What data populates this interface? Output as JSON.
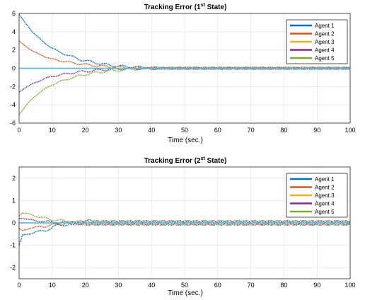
{
  "colors": {
    "agent1": "#0072BD",
    "agent2": "#D95319",
    "agent3": "#EDB120",
    "agent4": "#7E2F8E",
    "agent5": "#77AC30",
    "overlay": "#4DBEEE",
    "grid": "#e6e6e6",
    "axis": "#262626"
  },
  "chart_data": [
    {
      "type": "line",
      "title": "Tracking Error (1",
      "title_sup": "st",
      "title_tail": " State)",
      "xlabel": "Time (sec.)",
      "ylabel": "",
      "xlim": [
        0,
        100
      ],
      "ylim": [
        -6,
        6
      ],
      "xticks": [
        "0",
        "10",
        "20",
        "30",
        "40",
        "50",
        "60",
        "70",
        "80",
        "90",
        "100"
      ],
      "yticks": [
        "6",
        "4",
        "2",
        "0",
        "-2",
        "-4",
        "-6"
      ],
      "grid": true,
      "legend_position": "top-right",
      "series": [
        {
          "name": "Agent 1",
          "x": [
            0,
            2,
            4,
            6,
            8,
            10,
            12,
            15,
            18,
            21,
            24,
            27,
            30,
            33,
            36,
            40,
            45,
            50,
            60,
            70,
            80,
            90,
            100
          ],
          "values": [
            5.9,
            4.9,
            4.0,
            3.3,
            2.7,
            2.2,
            1.8,
            1.4,
            1.0,
            0.75,
            0.55,
            0.35,
            0.25,
            0.15,
            0.1,
            0.05,
            0.0,
            0.0,
            0.0,
            0.0,
            0.0,
            0.0,
            0.0
          ]
        },
        {
          "name": "Agent 2",
          "x": [
            0,
            2,
            4,
            6,
            8,
            10,
            12,
            15,
            18,
            21,
            24,
            27,
            30,
            33,
            36,
            40,
            45,
            50,
            60,
            70,
            80,
            90,
            100
          ],
          "values": [
            3.0,
            2.4,
            1.9,
            1.55,
            1.25,
            1.0,
            0.85,
            0.65,
            0.5,
            0.35,
            0.25,
            0.18,
            0.12,
            0.08,
            0.05,
            0.03,
            0.0,
            0.0,
            0.0,
            0.0,
            0.0,
            0.0,
            0.0
          ]
        },
        {
          "name": "Agent 3",
          "x": [
            0,
            10,
            20,
            30,
            40,
            50,
            60,
            70,
            80,
            90,
            100
          ],
          "values": [
            0,
            0,
            0,
            0,
            0,
            0,
            0,
            0,
            0,
            0,
            0
          ]
        },
        {
          "name": "Agent 4",
          "x": [
            0,
            2,
            4,
            6,
            8,
            10,
            12,
            15,
            18,
            21,
            24,
            27,
            30,
            33,
            36,
            40,
            45,
            50,
            60,
            70,
            80,
            90,
            100
          ],
          "values": [
            -2.6,
            -2.1,
            -1.7,
            -1.4,
            -1.1,
            -0.9,
            -0.75,
            -0.55,
            -0.4,
            -0.3,
            -0.2,
            -0.12,
            -0.08,
            -0.05,
            -0.03,
            -0.02,
            0.0,
            0.0,
            0.0,
            0.0,
            0.0,
            0.0,
            0.0
          ]
        },
        {
          "name": "Agent 5",
          "x": [
            0,
            2,
            4,
            6,
            8,
            10,
            12,
            15,
            18,
            21,
            24,
            27,
            30,
            33,
            36,
            40,
            45,
            50,
            60,
            70,
            80,
            90,
            100
          ],
          "values": [
            -5.1,
            -4.1,
            -3.3,
            -2.7,
            -2.2,
            -1.8,
            -1.5,
            -1.15,
            -0.85,
            -0.6,
            -0.45,
            -0.3,
            -0.2,
            -0.12,
            -0.08,
            -0.04,
            0.0,
            0.0,
            0.0,
            0.0,
            0.0,
            0.0,
            0.0
          ]
        }
      ],
      "residual_oscillation": {
        "amplitude": 0.12,
        "period": 5
      }
    },
    {
      "type": "line",
      "title": "Tracking Error (2",
      "title_sup": "st",
      "title_tail": " State)",
      "xlabel": "Time (sec.)",
      "ylabel": "",
      "xlim": [
        0,
        100
      ],
      "ylim": [
        -2.5,
        2.5
      ],
      "xticks": [
        "0",
        "10",
        "20",
        "30",
        "40",
        "50",
        "60",
        "70",
        "80",
        "90",
        "100"
      ],
      "yticks": [
        "2",
        "1",
        "0",
        "-1",
        "-2"
      ],
      "grid": true,
      "legend_position": "top-right",
      "series": [
        {
          "name": "Agent 1",
          "x": [
            0,
            1,
            3,
            5,
            8,
            10,
            12,
            15,
            18,
            21,
            24,
            27,
            30,
            35,
            40,
            50,
            60,
            70,
            80,
            90,
            100
          ],
          "values": [
            -1.0,
            -0.55,
            -0.5,
            -0.4,
            -0.35,
            -0.2,
            -0.1,
            -0.05,
            0.0,
            0.05,
            0.0,
            0.0,
            0.0,
            0.0,
            0.0,
            0.0,
            0.0,
            0.0,
            0.0,
            0.0,
            0.0
          ]
        },
        {
          "name": "Agent 2",
          "x": [
            0,
            1,
            3,
            5,
            8,
            10,
            12,
            15,
            18,
            21,
            24,
            27,
            30,
            35,
            40,
            50,
            60,
            70,
            80,
            90,
            100
          ],
          "values": [
            -0.25,
            -0.35,
            -0.25,
            -0.2,
            -0.15,
            -0.1,
            -0.05,
            0.0,
            0.0,
            0.0,
            0.0,
            0.0,
            0.0,
            0.0,
            0.0,
            0.0,
            0.0,
            0.0,
            0.0,
            0.0,
            0.0
          ]
        },
        {
          "name": "Agent 3",
          "x": [
            0,
            10,
            20,
            30,
            40,
            50,
            60,
            70,
            80,
            90,
            100
          ],
          "values": [
            0,
            0,
            0,
            0,
            0,
            0,
            0,
            0,
            0,
            0,
            0
          ]
        },
        {
          "name": "Agent 4",
          "x": [
            0,
            1,
            3,
            5,
            8,
            10,
            12,
            15,
            18,
            21,
            24,
            27,
            30,
            35,
            40,
            50,
            60,
            70,
            80,
            90,
            100
          ],
          "values": [
            0.2,
            0.2,
            0.15,
            0.1,
            0.05,
            0.05,
            0.0,
            0.0,
            0.0,
            0.0,
            0.0,
            0.0,
            0.0,
            0.0,
            0.0,
            0.0,
            0.0,
            0.0,
            0.0,
            0.0,
            0.0
          ]
        },
        {
          "name": "Agent 5",
          "x": [
            0,
            1,
            3,
            5,
            8,
            10,
            12,
            15,
            18,
            21,
            24,
            27,
            30,
            35,
            40,
            50,
            60,
            70,
            80,
            90,
            100
          ],
          "values": [
            0.3,
            0.45,
            0.4,
            0.3,
            0.2,
            0.15,
            0.1,
            0.05,
            0.0,
            0.0,
            0.0,
            0.0,
            0.0,
            0.0,
            0.0,
            0.0,
            0.0,
            0.0,
            0.0,
            0.0,
            0.0
          ]
        }
      ],
      "residual_oscillation": {
        "amplitude": 0.1,
        "period": 5
      }
    }
  ]
}
